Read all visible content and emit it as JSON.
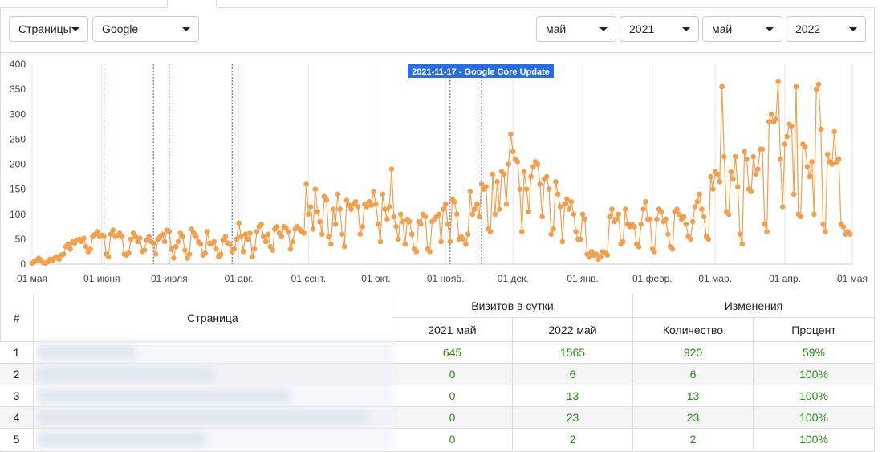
{
  "controls": {
    "left": [
      "Страницы",
      "Google"
    ],
    "right": [
      "май",
      "2021",
      "май",
      "2022"
    ]
  },
  "chart_data": {
    "type": "line",
    "xlim": [
      0,
      365
    ],
    "ylim": [
      0,
      400
    ],
    "yticks": [
      0,
      50,
      100,
      150,
      200,
      250,
      300,
      350,
      400
    ],
    "xticks": [
      {
        "value": 0,
        "label": "01 мая"
      },
      {
        "value": 31,
        "label": "01 июня"
      },
      {
        "value": 61,
        "label": "01 июля"
      },
      {
        "value": 92,
        "label": "01 авг."
      },
      {
        "value": 123,
        "label": "01 сент."
      },
      {
        "value": 153,
        "label": "01 окт."
      },
      {
        "value": 184,
        "label": "01 нояб."
      },
      {
        "value": 214,
        "label": "01 дек."
      },
      {
        "value": 245,
        "label": "01 янв."
      },
      {
        "value": 276,
        "label": "01 февр."
      },
      {
        "value": 304,
        "label": "01 мар."
      },
      {
        "value": 335,
        "label": "01 апр."
      },
      {
        "value": 365,
        "label": "01 мая"
      }
    ],
    "grid": true,
    "markers": [
      {
        "x": 32
      },
      {
        "x": 54
      },
      {
        "x": 61
      },
      {
        "x": 89
      },
      {
        "x": 186
      },
      {
        "x": 200,
        "label": "2021-11-17 - Google Core Update"
      }
    ],
    "x": [
      0,
      1,
      2,
      3,
      4,
      5,
      6,
      7,
      8,
      9,
      10,
      11,
      12,
      13,
      14,
      15,
      16,
      17,
      18,
      19,
      20,
      21,
      22,
      23,
      24,
      25,
      26,
      27,
      28,
      29,
      30,
      31,
      32,
      33,
      34,
      35,
      36,
      37,
      38,
      39,
      40,
      41,
      42,
      43,
      44,
      45,
      46,
      47,
      48,
      49,
      50,
      51,
      52,
      53,
      54,
      55,
      56,
      57,
      58,
      59,
      60,
      61,
      62,
      63,
      64,
      65,
      66,
      67,
      68,
      69,
      70,
      71,
      72,
      73,
      74,
      75,
      76,
      77,
      78,
      79,
      80,
      81,
      82,
      83,
      84,
      85,
      86,
      87,
      88,
      89,
      90,
      91,
      92,
      93,
      94,
      95,
      96,
      97,
      98,
      99,
      100,
      101,
      102,
      103,
      104,
      105,
      106,
      107,
      108,
      109,
      110,
      111,
      112,
      113,
      114,
      115,
      116,
      117,
      118,
      119,
      120,
      121,
      122,
      123,
      124,
      125,
      126,
      127,
      128,
      129,
      130,
      131,
      132,
      133,
      134,
      135,
      136,
      137,
      138,
      139,
      140,
      141,
      142,
      143,
      144,
      145,
      146,
      147,
      148,
      149,
      150,
      151,
      152,
      153,
      154,
      155,
      156,
      157,
      158,
      159,
      160,
      161,
      162,
      163,
      164,
      165,
      166,
      167,
      168,
      169,
      170,
      171,
      172,
      173,
      174,
      175,
      176,
      177,
      178,
      179,
      180,
      181,
      182,
      183,
      184,
      185,
      186,
      187,
      188,
      189,
      190,
      191,
      192,
      193,
      194,
      195,
      196,
      197,
      198,
      199,
      200,
      201,
      202,
      203,
      204,
      205,
      206,
      207,
      208,
      209,
      210,
      211,
      212,
      213,
      214,
      215,
      216,
      217,
      218,
      219,
      220,
      221,
      222,
      223,
      224,
      225,
      226,
      227,
      228,
      229,
      230,
      231,
      232,
      233,
      234,
      235,
      236,
      237,
      238,
      239,
      240,
      241,
      242,
      243,
      244,
      245,
      246,
      247,
      248,
      249,
      250,
      251,
      252,
      253,
      254,
      255,
      256,
      257,
      258,
      259,
      260,
      261,
      262,
      263,
      264,
      265,
      266,
      267,
      268,
      269,
      270,
      271,
      272,
      273,
      274,
      275,
      276,
      277,
      278,
      279,
      280,
      281,
      282,
      283,
      284,
      285,
      286,
      287,
      288,
      289,
      290,
      291,
      292,
      293,
      294,
      295,
      296,
      297,
      298,
      299,
      300,
      301,
      302,
      303,
      304,
      305,
      306,
      307,
      308,
      309,
      310,
      311,
      312,
      313,
      314,
      315,
      316,
      317,
      318,
      319,
      320,
      321,
      322,
      323,
      324,
      325,
      326,
      327,
      328,
      329,
      330,
      331,
      332,
      333,
      334,
      335,
      336,
      337,
      338,
      339,
      340,
      341,
      342,
      343,
      344,
      345,
      346,
      347,
      348,
      349,
      350,
      351,
      352,
      353,
      354,
      355,
      356,
      357,
      358,
      359,
      360,
      361,
      362,
      363,
      364
    ],
    "series": [
      {
        "color": "#f0a050",
        "values": [
          2,
          5,
          8,
          12,
          8,
          3,
          2,
          5,
          10,
          7,
          12,
          15,
          10,
          18,
          20,
          35,
          40,
          30,
          45,
          42,
          48,
          50,
          45,
          52,
          35,
          25,
          30,
          55,
          60,
          65,
          55,
          58,
          55,
          20,
          15,
          60,
          68,
          55,
          58,
          62,
          55,
          20,
          18,
          22,
          50,
          62,
          55,
          45,
          52,
          25,
          28,
          48,
          55,
          45,
          42,
          20,
          50,
          55,
          60,
          45,
          68,
          65,
          30,
          12,
          35,
          45,
          62,
          55,
          28,
          12,
          20,
          70,
          62,
          55,
          45,
          40,
          18,
          22,
          65,
          42,
          40,
          45,
          30,
          15,
          20,
          48,
          55,
          42,
          40,
          25,
          30,
          50,
          82,
          55,
          25,
          60,
          50,
          62,
          15,
          30,
          65,
          75,
          80,
          55,
          45,
          60,
          35,
          28,
          70,
          75,
          62,
          55,
          75,
          72,
          65,
          30,
          45,
          70,
          75,
          70,
          65,
          62,
          160,
          100,
          115,
          70,
          150,
          105,
          85,
          60,
          135,
          128,
          55,
          40,
          110,
          80,
          140,
          110,
          60,
          35,
          128,
          118,
          110,
          120,
          125,
          115,
          60,
          75,
          120,
          115,
          125,
          118,
          145,
          120,
          80,
          45,
          140,
          110,
          90,
          115,
          190,
          95,
          75,
          50,
          100,
          85,
          40,
          90,
          85,
          60,
          30,
          25,
          85,
          80,
          100,
          95,
          30,
          25,
          85,
          90,
          95,
          100,
          45,
          110,
          120,
          80,
          45,
          130,
          125,
          100,
          50,
          55,
          50,
          40,
          60,
          145,
          100,
          110,
          120,
          95,
          160,
          150,
          155,
          70,
          65,
          180,
          100,
          165,
          110,
          185,
          180,
          120,
          200,
          260,
          225,
          210,
          205,
          150,
          65,
          185,
          150,
          105,
          175,
          195,
          205,
          200,
          160,
          95,
          170,
          175,
          150,
          60,
          70,
          165,
          140,
          115,
          45,
          120,
          130,
          110,
          125,
          100,
          65,
          50,
          50,
          100,
          90,
          20,
          15,
          25,
          18,
          20,
          10,
          15,
          25,
          22,
          18,
          95,
          110,
          85,
          90,
          100,
          40,
          45,
          110,
          80,
          75,
          80,
          75,
          40,
          35,
          80,
          110,
          125,
          90,
          90,
          30,
          25,
          90,
          110,
          105,
          85,
          90,
          60,
          35,
          30,
          105,
          110,
          100,
          90,
          95,
          80,
          55,
          50,
          85,
          115,
          125,
          140,
          110,
          95,
          55,
          50,
          175,
          150,
          185,
          180,
          165,
          355,
          215,
          105,
          100,
          185,
          170,
          215,
          155,
          60,
          40,
          225,
          210,
          150,
          145,
          215,
          180,
          190,
          230,
          230,
          80,
          65,
          285,
          300,
          285,
          290,
          365,
          210,
          115,
          240,
          255,
          280,
          275,
          140,
          355,
          100,
          95,
          240,
          235,
          195,
          175,
          205,
          100,
          350,
          360,
          270,
          80,
          65,
          220,
          205,
          200,
          265,
          205,
          210,
          80,
          75,
          60,
          65,
          60
        ]
      }
    ]
  },
  "table": {
    "head": {
      "num": "#",
      "page": "Страница",
      "visits": "Визитов в сутки",
      "changes": "Изменения",
      "cols": [
        "2021 май",
        "2022 май",
        "Количество",
        "Процент"
      ]
    },
    "rows": [
      [
        "1",
        "645",
        "1565",
        "920",
        "59%"
      ],
      [
        "2",
        "0",
        "6",
        "6",
        "100%"
      ],
      [
        "3",
        "0",
        "13",
        "13",
        "100%"
      ],
      [
        "4",
        "0",
        "23",
        "23",
        "100%"
      ],
      [
        "5",
        "0",
        "2",
        "2",
        "100%"
      ]
    ]
  }
}
